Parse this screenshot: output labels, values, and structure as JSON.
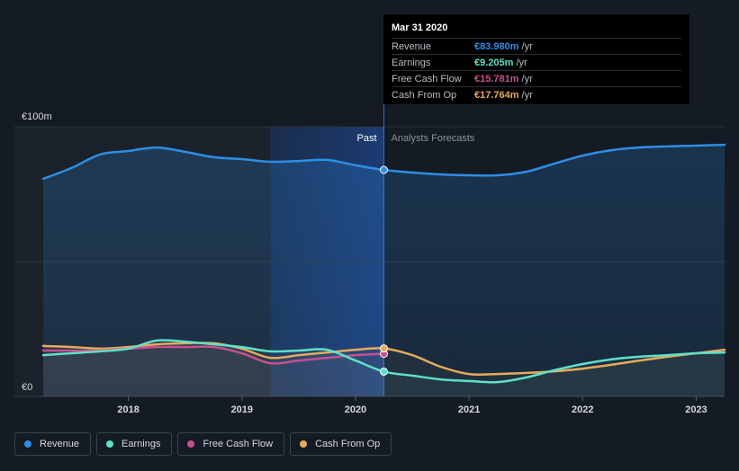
{
  "chart_data": {
    "type": "area",
    "title": "",
    "currency_unit": "€",
    "y_axis_labels": {
      "top": "€100m",
      "bottom": "€0"
    },
    "ylim": [
      0,
      100
    ],
    "xlim": [
      2017.25,
      2023.25
    ],
    "x_ticks": [
      {
        "value": 2018,
        "label": "2018"
      },
      {
        "value": 2019,
        "label": "2019"
      },
      {
        "value": 2020,
        "label": "2020"
      },
      {
        "value": 2021,
        "label": "2021"
      },
      {
        "value": 2022,
        "label": "2022"
      },
      {
        "value": 2023,
        "label": "2023"
      }
    ],
    "gridlines": [
      100,
      50
    ],
    "past_label": "Past",
    "forecast_label": "Analysts Forecasts",
    "past_end": 2020.25,
    "highlight_start": 2019.25,
    "series": [
      {
        "name": "Revenue",
        "key": "revenue",
        "color": "#2e8ee6",
        "area": true,
        "points": [
          [
            2017.25,
            80.7
          ],
          [
            2017.5,
            84.7
          ],
          [
            2017.75,
            89.7
          ],
          [
            2018.0,
            91.0
          ],
          [
            2018.25,
            92.3
          ],
          [
            2018.5,
            90.7
          ],
          [
            2018.75,
            88.7
          ],
          [
            2019.0,
            88.0
          ],
          [
            2019.25,
            87.0
          ],
          [
            2019.5,
            87.3
          ],
          [
            2019.75,
            87.7
          ],
          [
            2020.0,
            85.7
          ],
          [
            2020.25,
            84.0
          ],
          [
            2020.5,
            83.0
          ],
          [
            2020.75,
            82.3
          ],
          [
            2021.0,
            82.0
          ],
          [
            2021.25,
            82.0
          ],
          [
            2021.5,
            83.3
          ],
          [
            2021.75,
            86.3
          ],
          [
            2022.0,
            89.3
          ],
          [
            2022.25,
            91.3
          ],
          [
            2022.5,
            92.3
          ],
          [
            2022.75,
            92.7
          ],
          [
            2023.0,
            93.0
          ],
          [
            2023.25,
            93.3
          ]
        ]
      },
      {
        "name": "Earnings",
        "key": "earnings",
        "color": "#5fe0c8",
        "area": false,
        "points": [
          [
            2017.25,
            15.3
          ],
          [
            2017.5,
            16.0
          ],
          [
            2017.75,
            16.7
          ],
          [
            2018.0,
            17.7
          ],
          [
            2018.25,
            20.7
          ],
          [
            2018.5,
            20.3
          ],
          [
            2018.75,
            19.3
          ],
          [
            2019.0,
            18.3
          ],
          [
            2019.25,
            16.7
          ],
          [
            2019.5,
            17.0
          ],
          [
            2019.75,
            17.3
          ],
          [
            2020.0,
            13.3
          ],
          [
            2020.25,
            9.2
          ],
          [
            2020.5,
            7.7
          ],
          [
            2020.75,
            6.3
          ],
          [
            2021.0,
            5.7
          ],
          [
            2021.25,
            5.3
          ],
          [
            2021.5,
            7.0
          ],
          [
            2021.75,
            9.7
          ],
          [
            2022.0,
            12.0
          ],
          [
            2022.25,
            13.7
          ],
          [
            2022.5,
            14.7
          ],
          [
            2022.75,
            15.3
          ],
          [
            2023.0,
            16.0
          ],
          [
            2023.25,
            16.3
          ]
        ]
      },
      {
        "name": "Free Cash Flow",
        "key": "fcf",
        "color": "#c94f8f",
        "area": false,
        "points": [
          [
            2017.25,
            17.0
          ],
          [
            2017.5,
            17.0
          ],
          [
            2017.75,
            17.0
          ],
          [
            2018.0,
            17.7
          ],
          [
            2018.25,
            18.3
          ],
          [
            2018.5,
            18.3
          ],
          [
            2018.75,
            18.3
          ],
          [
            2019.0,
            16.0
          ],
          [
            2019.25,
            12.3
          ],
          [
            2019.5,
            13.3
          ],
          [
            2019.75,
            14.3
          ],
          [
            2020.0,
            15.3
          ],
          [
            2020.25,
            15.8
          ]
        ]
      },
      {
        "name": "Cash From Op",
        "key": "cfo",
        "color": "#e8a95a",
        "area": false,
        "points": [
          [
            2017.25,
            18.7
          ],
          [
            2017.5,
            18.3
          ],
          [
            2017.75,
            17.7
          ],
          [
            2018.0,
            18.3
          ],
          [
            2018.25,
            19.3
          ],
          [
            2018.5,
            19.7
          ],
          [
            2018.75,
            19.7
          ],
          [
            2019.0,
            17.7
          ],
          [
            2019.25,
            14.3
          ],
          [
            2019.5,
            15.3
          ],
          [
            2019.75,
            16.3
          ],
          [
            2020.0,
            17.3
          ],
          [
            2020.25,
            17.8
          ],
          [
            2020.5,
            15.3
          ],
          [
            2020.75,
            11.0
          ],
          [
            2021.0,
            8.3
          ],
          [
            2021.25,
            8.3
          ],
          [
            2021.5,
            8.7
          ],
          [
            2021.75,
            9.3
          ],
          [
            2022.0,
            10.3
          ],
          [
            2022.25,
            11.7
          ],
          [
            2022.5,
            13.3
          ],
          [
            2022.75,
            14.7
          ],
          [
            2023.0,
            16.0
          ],
          [
            2023.25,
            17.3
          ]
        ]
      }
    ]
  },
  "tooltip": {
    "date": "Mar 31 2020",
    "rows": [
      {
        "label": "Revenue",
        "value": "€83.980m",
        "unit": "/yr",
        "color": "#2e8ee6"
      },
      {
        "label": "Earnings",
        "value": "€9.205m",
        "unit": "/yr",
        "color": "#5fe0c8"
      },
      {
        "label": "Free Cash Flow",
        "value": "€15.781m",
        "unit": "/yr",
        "color": "#c94f8f"
      },
      {
        "label": "Cash From Op",
        "value": "€17.764m",
        "unit": "/yr",
        "color": "#e8a95a"
      }
    ]
  },
  "legend": [
    {
      "label": "Revenue",
      "color": "#2e8ee6"
    },
    {
      "label": "Earnings",
      "color": "#5fe0c8"
    },
    {
      "label": "Free Cash Flow",
      "color": "#c94f8f"
    },
    {
      "label": "Cash From Op",
      "color": "#e8a95a"
    }
  ]
}
